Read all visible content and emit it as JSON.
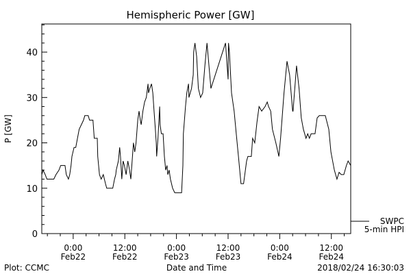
{
  "chart_data": {
    "type": "line",
    "title": "Hemispheric Power [GW]",
    "xlabel": "Date and Time",
    "ylabel": "P [GW]",
    "x_units": "hours since 2018-02-22 00:00 UT",
    "xlim": [
      -7.3,
      64.5
    ],
    "ylim": [
      0,
      46.2
    ],
    "yticks": [
      0,
      10,
      20,
      30,
      40
    ],
    "xticks": [
      {
        "x": 0,
        "line1": "0:00",
        "line2": "Feb22"
      },
      {
        "x": 12,
        "line1": "12:00",
        "line2": "Feb22"
      },
      {
        "x": 24,
        "line1": "0:00",
        "line2": "Feb23"
      },
      {
        "x": 36,
        "line1": "12:00",
        "line2": "Feb23"
      },
      {
        "x": 48,
        "line1": "0:00",
        "line2": "Feb24"
      },
      {
        "x": 60,
        "line1": "12:00",
        "line2": "Feb24"
      }
    ],
    "legend": {
      "name": "SWPC",
      "subtitle": "5-min HPI",
      "placement": "bottom-right outside"
    },
    "series": [
      {
        "name": "SWPC",
        "x": [
          -7.3,
          -7.0,
          -6.5,
          -6.1,
          -4.5,
          -4.0,
          -3.3,
          -2.9,
          -1.9,
          -1.6,
          -1.1,
          -0.8,
          -0.5,
          -0.3,
          0.2,
          0.6,
          1.0,
          1.4,
          1.9,
          2.4,
          2.7,
          3.5,
          3.8,
          4.6,
          4.9,
          5.6,
          5.7,
          6.1,
          6.5,
          7.0,
          7.5,
          7.8,
          9.2,
          9.6,
          9.9,
          10.0,
          10.5,
          10.8,
          11.0,
          11.3,
          11.6,
          11.9,
          12.3,
          12.7,
          13.1,
          13.4,
          13.7,
          14.0,
          14.3,
          14.6,
          15.0,
          15.3,
          15.6,
          15.8,
          16.2,
          16.6,
          17.0,
          17.4,
          17.5,
          17.8,
          18.2,
          18.5,
          18.8,
          19.1,
          19.3,
          19.4,
          19.7,
          20.1,
          20.2,
          20.5,
          20.9,
          21.2,
          21.5,
          21.8,
          22.0,
          22.3,
          22.6,
          23.1,
          23.6,
          25.2,
          25.5,
          25.6,
          26.1,
          26.4,
          26.8,
          26.9,
          27.2,
          27.5,
          27.9,
          28.0,
          28.3,
          28.7,
          29.1,
          29.6,
          30.1,
          30.6,
          31.1,
          32.0,
          35.4,
          36.0,
          36.1,
          36.3,
          36.8,
          37.4,
          37.9,
          38.4,
          39.0,
          39.6,
          40.3,
          40.6,
          41.4,
          41.7,
          42.2,
          42.7,
          43.2,
          43.8,
          44.6,
          45.1,
          45.4,
          45.9,
          46.3,
          47.1,
          47.8,
          48.2,
          49.0,
          49.7,
          50.3,
          51.0,
          51.1,
          51.9,
          52.5,
          53.0,
          53.5,
          54.1,
          54.5,
          54.9,
          55.3,
          56.2,
          56.7,
          57.2,
          58.6,
          59.4,
          59.9,
          60.7,
          61.3,
          61.8,
          62.3,
          62.9,
          63.5,
          63.9,
          64.5
        ],
        "y": [
          13,
          14,
          13,
          12,
          12,
          13,
          14,
          15,
          15,
          13,
          12,
          13,
          15,
          17,
          19,
          19,
          21,
          23,
          24,
          25,
          26,
          26,
          25,
          25,
          21,
          21,
          17,
          13,
          12,
          13,
          11,
          10,
          10,
          12,
          13,
          14,
          16,
          19,
          17,
          12,
          16,
          15,
          13,
          16,
          14,
          12,
          16,
          20,
          18,
          20,
          25,
          27,
          25,
          24,
          27,
          29,
          30,
          33,
          31,
          32,
          33,
          31,
          27,
          23,
          20,
          17,
          21,
          28,
          24,
          22,
          22,
          17,
          14,
          15,
          13,
          14,
          12,
          10,
          9,
          9,
          15,
          22,
          28,
          31,
          33,
          30,
          31,
          32,
          35,
          40,
          42,
          39,
          32,
          30,
          31,
          37,
          42,
          32,
          42,
          34,
          42,
          40,
          31,
          27,
          22,
          17,
          11,
          11,
          16,
          17,
          17,
          21,
          20,
          24.5,
          28,
          27,
          28,
          29,
          28,
          27,
          23,
          20,
          17,
          21,
          31,
          38,
          35,
          27,
          27,
          37,
          32,
          25.5,
          23,
          21,
          22,
          21,
          22,
          22,
          25.5,
          26,
          26,
          23,
          18,
          14,
          12,
          13.5,
          13,
          13,
          15,
          16,
          15
        ]
      }
    ]
  },
  "footer": {
    "left": "Plot: CCMC",
    "right": "2018/02/24 16:30:03"
  }
}
